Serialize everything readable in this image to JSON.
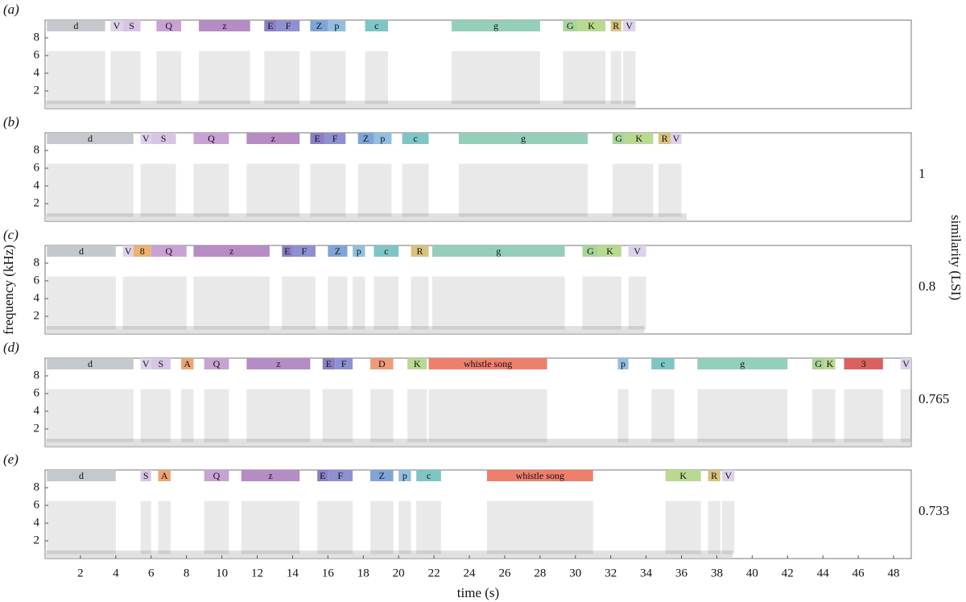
{
  "chart_data": [
    {
      "type": "spectrogram",
      "panel_label": "(a)",
      "xlim": [
        0,
        49
      ],
      "ylim": [
        0,
        10
      ],
      "yticks": [
        2,
        4,
        6,
        8
      ],
      "duration": 33.4,
      "segments": [
        {
          "label": "d",
          "start": 0.1,
          "end": 3.4,
          "color": "#c5c9ce"
        },
        {
          "label": "V",
          "start": 3.7,
          "end": 4.4,
          "color": "#ddd2ea"
        },
        {
          "label": "S",
          "start": 4.4,
          "end": 5.4,
          "color": "#d8c5e5"
        },
        {
          "label": "Q",
          "start": 6.3,
          "end": 7.7,
          "color": "#c9a2d4"
        },
        {
          "label": "z",
          "start": 8.7,
          "end": 11.6,
          "color": "#b68cc5"
        },
        {
          "label": "E",
          "start": 12.4,
          "end": 13.1,
          "color": "#8a7fc6"
        },
        {
          "label": "F",
          "start": 13.1,
          "end": 14.4,
          "color": "#8f90d2"
        },
        {
          "label": "Z",
          "start": 15.0,
          "end": 16.0,
          "color": "#7fa5d8"
        },
        {
          "label": "p",
          "start": 16.0,
          "end": 17.0,
          "color": "#92bfe0"
        },
        {
          "label": "c",
          "start": 18.1,
          "end": 19.4,
          "color": "#7ec5c6"
        },
        {
          "label": "g",
          "start": 23.0,
          "end": 28.0,
          "color": "#94cfb9"
        },
        {
          "label": "G",
          "start": 29.3,
          "end": 30.1,
          "color": "#a9d59b"
        },
        {
          "label": "K",
          "start": 30.1,
          "end": 31.7,
          "color": "#b9d991"
        },
        {
          "label": "R",
          "start": 32.0,
          "end": 32.6,
          "color": "#d9c27d"
        },
        {
          "label": "V",
          "start": 32.7,
          "end": 33.4,
          "color": "#ddd2ea"
        }
      ]
    },
    {
      "type": "spectrogram",
      "panel_label": "(b)",
      "xlim": [
        0,
        49
      ],
      "ylim": [
        0,
        10
      ],
      "yticks": [
        2,
        4,
        6,
        8
      ],
      "duration": 36.3,
      "similarity": 1,
      "segments": [
        {
          "label": "d",
          "start": 0.1,
          "end": 5.0,
          "color": "#c5c9ce"
        },
        {
          "label": "V",
          "start": 5.4,
          "end": 6.0,
          "color": "#ddd2ea"
        },
        {
          "label": "S",
          "start": 6.0,
          "end": 7.4,
          "color": "#d8c5e5"
        },
        {
          "label": "Q",
          "start": 8.4,
          "end": 10.4,
          "color": "#c9a2d4"
        },
        {
          "label": "z",
          "start": 11.4,
          "end": 14.4,
          "color": "#b68cc5"
        },
        {
          "label": "E",
          "start": 15.0,
          "end": 15.8,
          "color": "#8a7fc6"
        },
        {
          "label": "F",
          "start": 15.8,
          "end": 17.0,
          "color": "#8f90d2"
        },
        {
          "label": "Z",
          "start": 17.7,
          "end": 18.6,
          "color": "#7fa5d8"
        },
        {
          "label": "p",
          "start": 18.6,
          "end": 19.6,
          "color": "#92bfe0"
        },
        {
          "label": "c",
          "start": 20.2,
          "end": 21.7,
          "color": "#7ec5c6"
        },
        {
          "label": "g",
          "start": 23.4,
          "end": 30.7,
          "color": "#94cfb9"
        },
        {
          "label": "G",
          "start": 32.1,
          "end": 32.8,
          "color": "#a9d59b"
        },
        {
          "label": "K",
          "start": 32.8,
          "end": 34.4,
          "color": "#b9d991"
        },
        {
          "label": "R",
          "start": 34.7,
          "end": 35.4,
          "color": "#d9c27d"
        },
        {
          "label": "V",
          "start": 35.4,
          "end": 36.0,
          "color": "#ddd2ea"
        }
      ]
    },
    {
      "type": "spectrogram",
      "panel_label": "(c)",
      "xlim": [
        0,
        49
      ],
      "ylim": [
        0,
        10
      ],
      "yticks": [
        2,
        4,
        6,
        8
      ],
      "duration": 33.9,
      "similarity": 0.8,
      "y_label": "frequency (kHz)",
      "y2_label": "similarity (LSI)",
      "segments": [
        {
          "label": "d",
          "start": 0.1,
          "end": 4.0,
          "color": "#c5c9ce"
        },
        {
          "label": "V",
          "start": 4.4,
          "end": 5.0,
          "color": "#ddd2ea"
        },
        {
          "label": "8",
          "start": 5.0,
          "end": 6.0,
          "color": "#ebb271"
        },
        {
          "label": "Q",
          "start": 6.0,
          "end": 8.0,
          "color": "#c9a2d4"
        },
        {
          "label": "z",
          "start": 8.4,
          "end": 12.7,
          "color": "#b68cc5"
        },
        {
          "label": "E",
          "start": 13.4,
          "end": 14.0,
          "color": "#8a7fc6"
        },
        {
          "label": "F",
          "start": 14.0,
          "end": 15.3,
          "color": "#8f90d2"
        },
        {
          "label": "Z",
          "start": 16.0,
          "end": 17.1,
          "color": "#7fa5d8"
        },
        {
          "label": "p",
          "start": 17.4,
          "end": 18.1,
          "color": "#92bfe0"
        },
        {
          "label": "c",
          "start": 18.6,
          "end": 20.0,
          "color": "#7ec5c6"
        },
        {
          "label": "R",
          "start": 20.7,
          "end": 21.7,
          "color": "#d9c27d"
        },
        {
          "label": "g",
          "start": 21.9,
          "end": 29.4,
          "color": "#94cfb9"
        },
        {
          "label": "G",
          "start": 30.4,
          "end": 31.3,
          "color": "#a9d59b"
        },
        {
          "label": "K",
          "start": 31.3,
          "end": 32.6,
          "color": "#b9d991"
        },
        {
          "label": "V",
          "start": 33.0,
          "end": 34.0,
          "color": "#ddd2ea"
        }
      ]
    },
    {
      "type": "spectrogram",
      "panel_label": "(d)",
      "xlim": [
        0,
        49
      ],
      "ylim": [
        0,
        10
      ],
      "yticks": [
        2,
        4,
        6,
        8
      ],
      "duration": 49,
      "similarity": 0.765,
      "segments": [
        {
          "label": "d",
          "start": 0.1,
          "end": 5.0,
          "color": "#c5c9ce"
        },
        {
          "label": "V",
          "start": 5.4,
          "end": 6.0,
          "color": "#ddd2ea"
        },
        {
          "label": "S",
          "start": 6.0,
          "end": 7.1,
          "color": "#d8c5e5"
        },
        {
          "label": "A",
          "start": 7.7,
          "end": 8.4,
          "color": "#eea470"
        },
        {
          "label": "Q",
          "start": 9.0,
          "end": 10.4,
          "color": "#c9a2d4"
        },
        {
          "label": "z",
          "start": 11.4,
          "end": 15.0,
          "color": "#b68cc5"
        },
        {
          "label": "E",
          "start": 15.7,
          "end": 16.4,
          "color": "#8a7fc6"
        },
        {
          "label": "F",
          "start": 16.4,
          "end": 17.4,
          "color": "#8f90d2"
        },
        {
          "label": "D",
          "start": 18.4,
          "end": 19.7,
          "color": "#ef9b79"
        },
        {
          "label": "K",
          "start": 20.5,
          "end": 21.6,
          "color": "#b9d991"
        },
        {
          "label": "whistle song",
          "start": 21.7,
          "end": 28.4,
          "color": "#ef7e6d"
        },
        {
          "label": "p",
          "start": 32.4,
          "end": 33.0,
          "color": "#92bfe0"
        },
        {
          "label": "c",
          "start": 34.3,
          "end": 35.6,
          "color": "#7ec5c6"
        },
        {
          "label": "g",
          "start": 36.9,
          "end": 42.0,
          "color": "#94cfb9"
        },
        {
          "label": "G",
          "start": 43.4,
          "end": 44.1,
          "color": "#a9d59b"
        },
        {
          "label": "K",
          "start": 44.1,
          "end": 44.7,
          "color": "#b9d991"
        },
        {
          "label": "3",
          "start": 45.2,
          "end": 47.4,
          "color": "#da6160"
        },
        {
          "label": "V",
          "start": 48.4,
          "end": 49.0,
          "color": "#ddd2ea"
        }
      ]
    },
    {
      "type": "spectrogram",
      "panel_label": "(e)",
      "xlim": [
        0,
        49
      ],
      "ylim": [
        0,
        10
      ],
      "yticks": [
        2,
        4,
        6,
        8
      ],
      "duration": 38.9,
      "similarity": 0.733,
      "x_label": "time (s)",
      "xticks": [
        2,
        4,
        6,
        8,
        10,
        12,
        14,
        16,
        18,
        20,
        22,
        24,
        26,
        28,
        30,
        32,
        34,
        36,
        38,
        40,
        42,
        44,
        46,
        48
      ],
      "segments": [
        {
          "label": "d",
          "start": 0.1,
          "end": 4.0,
          "color": "#c5c9ce"
        },
        {
          "label": "S",
          "start": 5.4,
          "end": 6.0,
          "color": "#d8c5e5"
        },
        {
          "label": "A",
          "start": 6.4,
          "end": 7.1,
          "color": "#eea470"
        },
        {
          "label": "Q",
          "start": 9.0,
          "end": 10.4,
          "color": "#c9a2d4"
        },
        {
          "label": "z",
          "start": 11.1,
          "end": 14.4,
          "color": "#b68cc5"
        },
        {
          "label": "E",
          "start": 15.4,
          "end": 16.0,
          "color": "#8a7fc6"
        },
        {
          "label": "F",
          "start": 16.0,
          "end": 17.4,
          "color": "#8f90d2"
        },
        {
          "label": "Z",
          "start": 18.4,
          "end": 19.7,
          "color": "#7fa5d8"
        },
        {
          "label": "p",
          "start": 20.0,
          "end": 20.7,
          "color": "#92bfe0"
        },
        {
          "label": "c",
          "start": 21.0,
          "end": 22.4,
          "color": "#7ec5c6"
        },
        {
          "label": "whistle song",
          "start": 25.0,
          "end": 31.0,
          "color": "#ef7e6d"
        },
        {
          "label": "K",
          "start": 35.1,
          "end": 37.1,
          "color": "#b9d991"
        },
        {
          "label": "R",
          "start": 37.5,
          "end": 38.2,
          "color": "#d9c27d"
        },
        {
          "label": "V",
          "start": 38.3,
          "end": 39.0,
          "color": "#ddd2ea"
        }
      ]
    }
  ]
}
